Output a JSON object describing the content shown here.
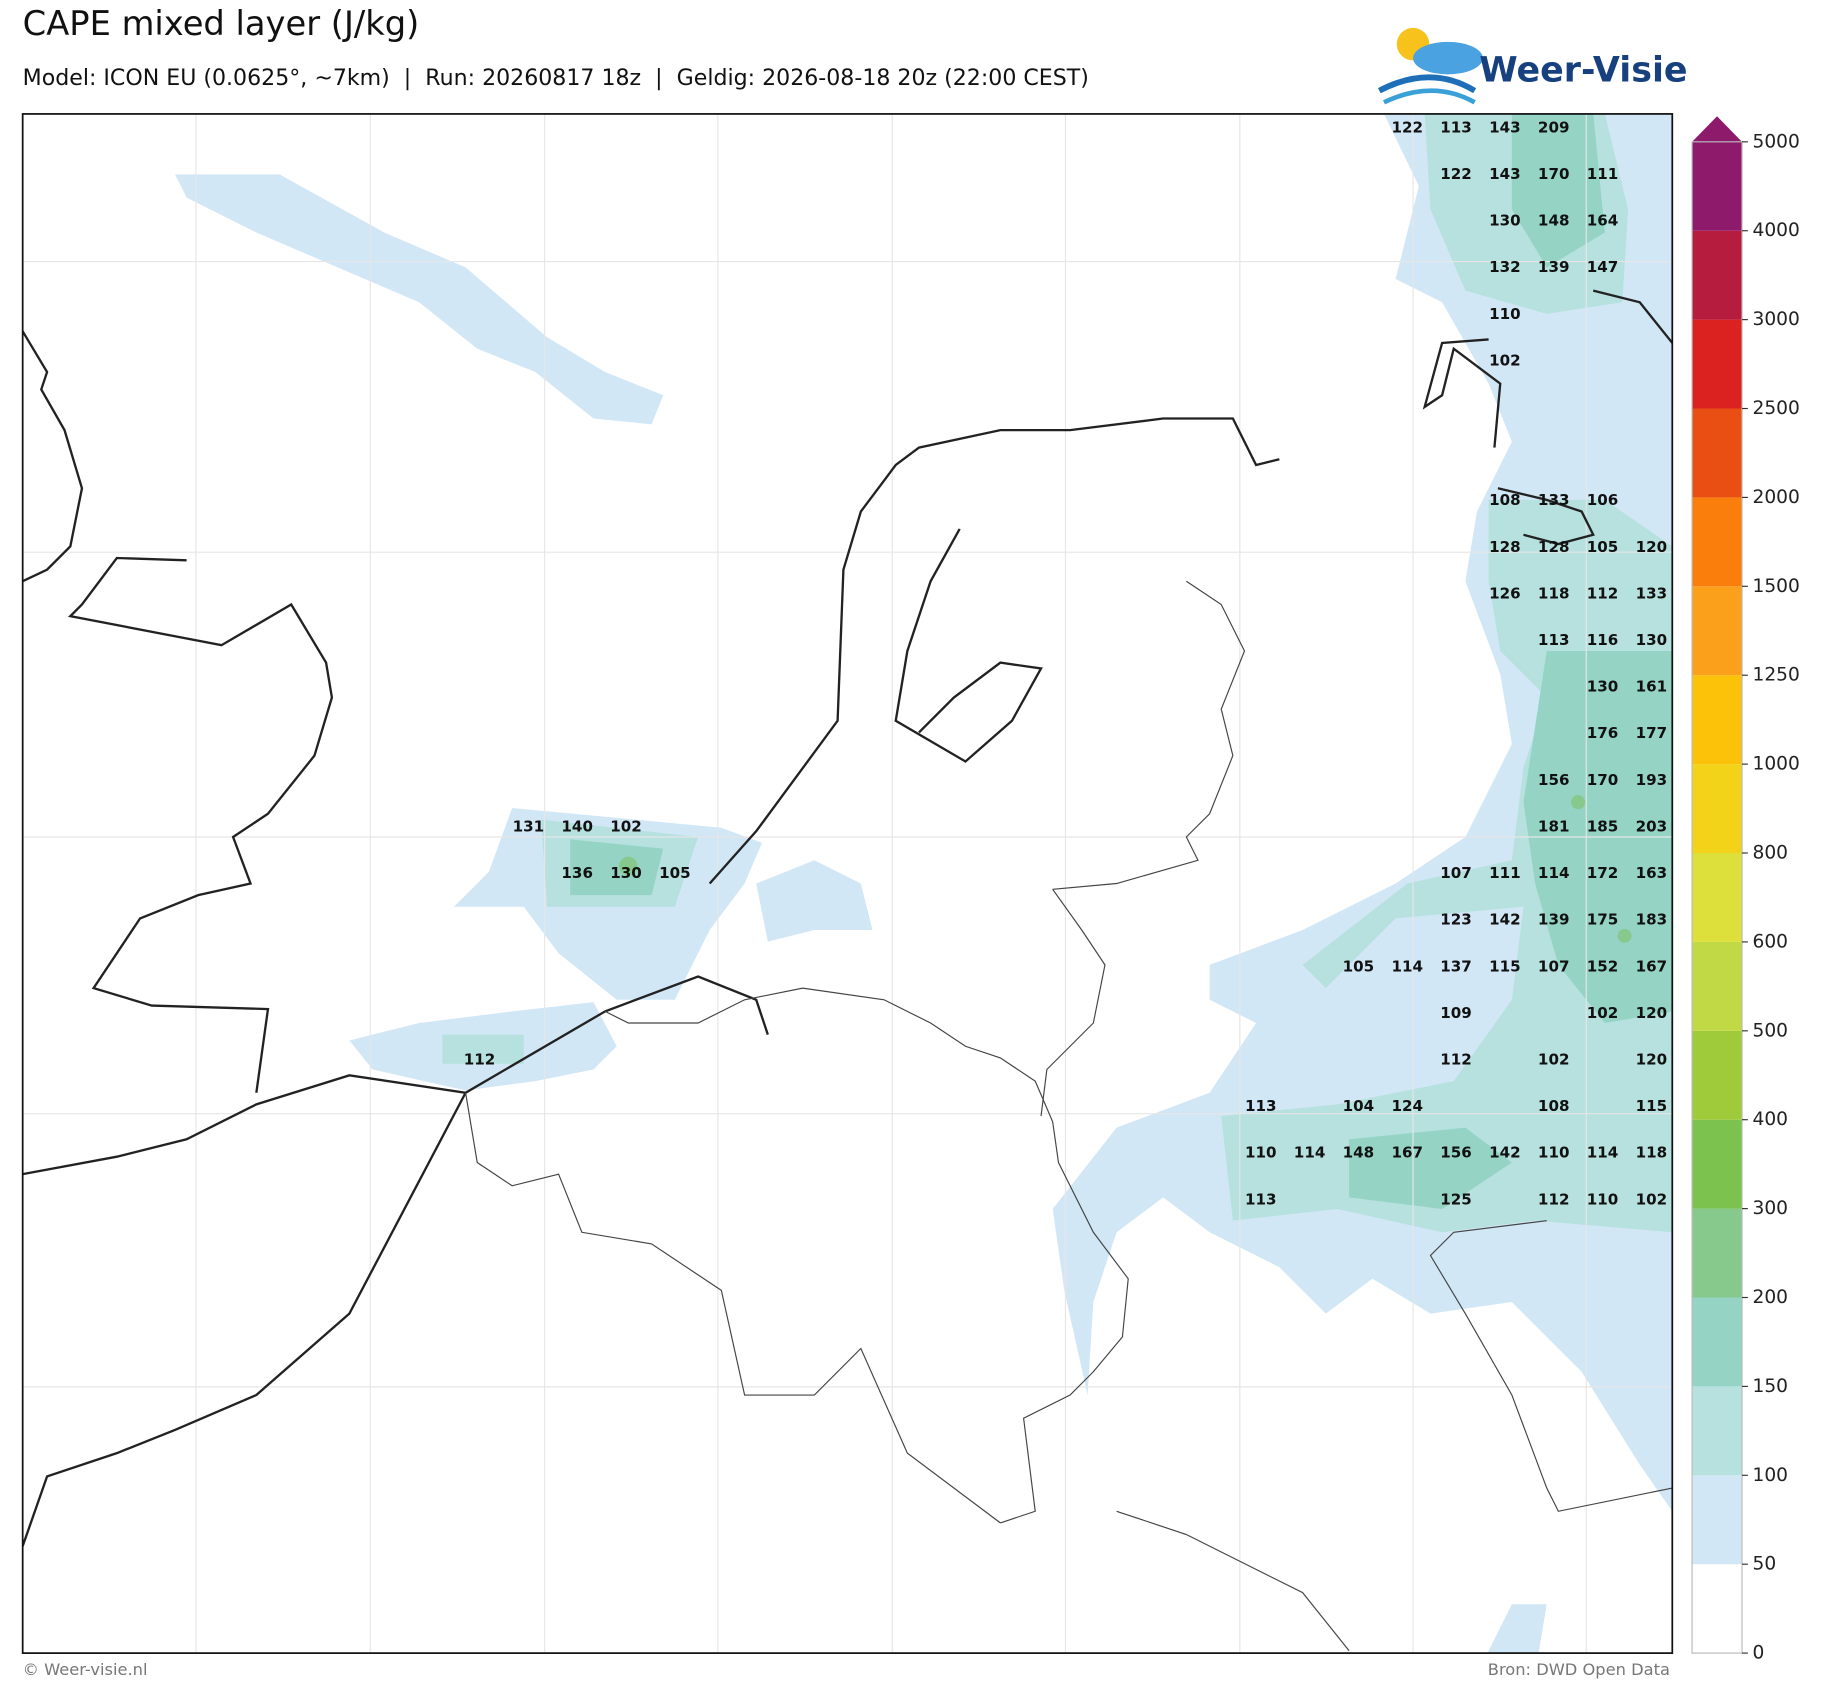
{
  "header": {
    "title": "CAPE mixed layer (J/kg)",
    "subtitle": "Model: ICON EU (0.0625°, ~7km)  |  Run: 20260817 18z  |  Geldig: 2026-08-18 20z (22:00 CEST)"
  },
  "logo": "Weer-Visie",
  "footer": {
    "left": "© Weer-visie.nl",
    "right": "Bron: DWD Open Data"
  },
  "colorbar": {
    "ticks": [
      0,
      50,
      100,
      150,
      200,
      300,
      400,
      500,
      600,
      800,
      1000,
      1250,
      1500,
      2000,
      2500,
      3000,
      4000,
      5000
    ],
    "colors": [
      "#ffffff",
      "#d2e7f6",
      "#b6e1df",
      "#95d3c5",
      "#87c98c",
      "#7bc24f",
      "#9fcb3b",
      "#c2d946",
      "#dde03a",
      "#f3d31a",
      "#fcc20a",
      "#fba01b",
      "#f97e0c",
      "#e94e12",
      "#dc2121",
      "#b51c3d",
      "#8e1a6b"
    ]
  },
  "cape_labels": [
    [
      null,
      null,
      null,
      null,
      null,
      null,
      null,
      null,
      null,
      null,
      null,
      null,
      null,
      null,
      null,
      null,
      null,
      null,
      null,
      122,
      113,
      143,
      209,
      null,
      null
    ],
    [
      null,
      null,
      null,
      null,
      null,
      null,
      null,
      null,
      null,
      null,
      null,
      null,
      null,
      null,
      null,
      null,
      null,
      null,
      null,
      null,
      122,
      143,
      170,
      111,
      null
    ],
    [
      null,
      null,
      null,
      null,
      null,
      null,
      null,
      null,
      null,
      null,
      null,
      null,
      null,
      null,
      null,
      null,
      null,
      null,
      null,
      null,
      null,
      130,
      148,
      164,
      null
    ],
    [
      null,
      null,
      null,
      null,
      null,
      null,
      null,
      null,
      null,
      null,
      null,
      null,
      null,
      null,
      null,
      null,
      null,
      null,
      null,
      null,
      null,
      132,
      139,
      147,
      null
    ],
    [
      null,
      null,
      null,
      null,
      null,
      null,
      null,
      null,
      null,
      null,
      null,
      null,
      null,
      null,
      null,
      null,
      null,
      null,
      null,
      null,
      null,
      110,
      null,
      null,
      null
    ],
    [
      null,
      null,
      null,
      null,
      null,
      null,
      null,
      null,
      null,
      null,
      null,
      null,
      null,
      null,
      null,
      null,
      null,
      null,
      null,
      null,
      null,
      102,
      null,
      null,
      null
    ],
    [
      null,
      null,
      null,
      null,
      null,
      null,
      null,
      null,
      null,
      null,
      null,
      null,
      null,
      null,
      null,
      null,
      null,
      null,
      null,
      null,
      null,
      null,
      null,
      null,
      null
    ],
    [
      null,
      null,
      null,
      null,
      null,
      null,
      null,
      null,
      null,
      null,
      null,
      null,
      null,
      null,
      null,
      null,
      null,
      null,
      null,
      null,
      null,
      null,
      null,
      null,
      null
    ],
    [
      null,
      null,
      null,
      null,
      null,
      null,
      null,
      null,
      null,
      null,
      null,
      null,
      null,
      null,
      null,
      null,
      null,
      null,
      null,
      null,
      null,
      108,
      133,
      106,
      null
    ],
    [
      null,
      null,
      null,
      null,
      null,
      null,
      null,
      null,
      null,
      null,
      null,
      null,
      null,
      null,
      null,
      null,
      null,
      null,
      null,
      null,
      null,
      128,
      128,
      105,
      120
    ],
    [
      null,
      null,
      null,
      null,
      null,
      null,
      null,
      null,
      null,
      null,
      null,
      null,
      null,
      null,
      null,
      null,
      null,
      null,
      null,
      null,
      null,
      126,
      118,
      112,
      133
    ],
    [
      null,
      null,
      null,
      null,
      null,
      null,
      null,
      null,
      null,
      null,
      null,
      null,
      null,
      null,
      null,
      null,
      null,
      null,
      null,
      null,
      null,
      null,
      113,
      116,
      130
    ],
    [
      null,
      null,
      null,
      null,
      null,
      null,
      null,
      null,
      null,
      null,
      null,
      null,
      null,
      null,
      null,
      null,
      null,
      null,
      null,
      null,
      null,
      null,
      null,
      130,
      161
    ],
    [
      null,
      null,
      null,
      null,
      null,
      null,
      null,
      null,
      null,
      null,
      null,
      null,
      null,
      null,
      null,
      null,
      null,
      null,
      null,
      null,
      null,
      null,
      null,
      176,
      177
    ],
    [
      null,
      null,
      null,
      null,
      null,
      null,
      null,
      null,
      null,
      null,
      null,
      null,
      null,
      null,
      null,
      null,
      null,
      null,
      null,
      null,
      null,
      null,
      156,
      170,
      193
    ],
    [
      null,
      131,
      140,
      102,
      null,
      null,
      null,
      null,
      null,
      null,
      null,
      null,
      null,
      null,
      null,
      null,
      null,
      null,
      null,
      null,
      null,
      null,
      181,
      185,
      203
    ],
    [
      null,
      null,
      136,
      130,
      105,
      null,
      null,
      null,
      null,
      null,
      null,
      null,
      null,
      null,
      null,
      null,
      null,
      null,
      null,
      null,
      107,
      111,
      114,
      172,
      163
    ],
    [
      null,
      null,
      null,
      null,
      null,
      null,
      null,
      null,
      null,
      null,
      null,
      null,
      null,
      null,
      null,
      null,
      null,
      null,
      null,
      null,
      123,
      142,
      139,
      175,
      183
    ],
    [
      null,
      null,
      null,
      null,
      null,
      null,
      null,
      null,
      null,
      null,
      null,
      null,
      null,
      null,
      null,
      null,
      null,
      null,
      105,
      114,
      137,
      115,
      107,
      152,
      167
    ],
    [
      null,
      null,
      null,
      null,
      null,
      null,
      null,
      null,
      null,
      null,
      null,
      null,
      null,
      null,
      null,
      null,
      null,
      null,
      null,
      null,
      109,
      null,
      null,
      102,
      120
    ],
    [
      112,
      null,
      null,
      null,
      null,
      null,
      null,
      null,
      null,
      null,
      null,
      null,
      null,
      null,
      null,
      null,
      null,
      null,
      null,
      null,
      112,
      null,
      102,
      null,
      120
    ],
    [
      null,
      null,
      null,
      null,
      null,
      null,
      null,
      null,
      null,
      null,
      null,
      null,
      null,
      null,
      null,
      null,
      113,
      null,
      104,
      124,
      null,
      null,
      108,
      null,
      115
    ],
    [
      null,
      null,
      null,
      null,
      null,
      null,
      null,
      null,
      null,
      null,
      null,
      null,
      null,
      null,
      null,
      null,
      110,
      114,
      148,
      167,
      156,
      142,
      110,
      114,
      118
    ],
    [
      null,
      null,
      null,
      null,
      null,
      null,
      null,
      null,
      null,
      null,
      null,
      null,
      null,
      null,
      null,
      null,
      113,
      null,
      null,
      null,
      125,
      null,
      112,
      110,
      102
    ]
  ]
}
